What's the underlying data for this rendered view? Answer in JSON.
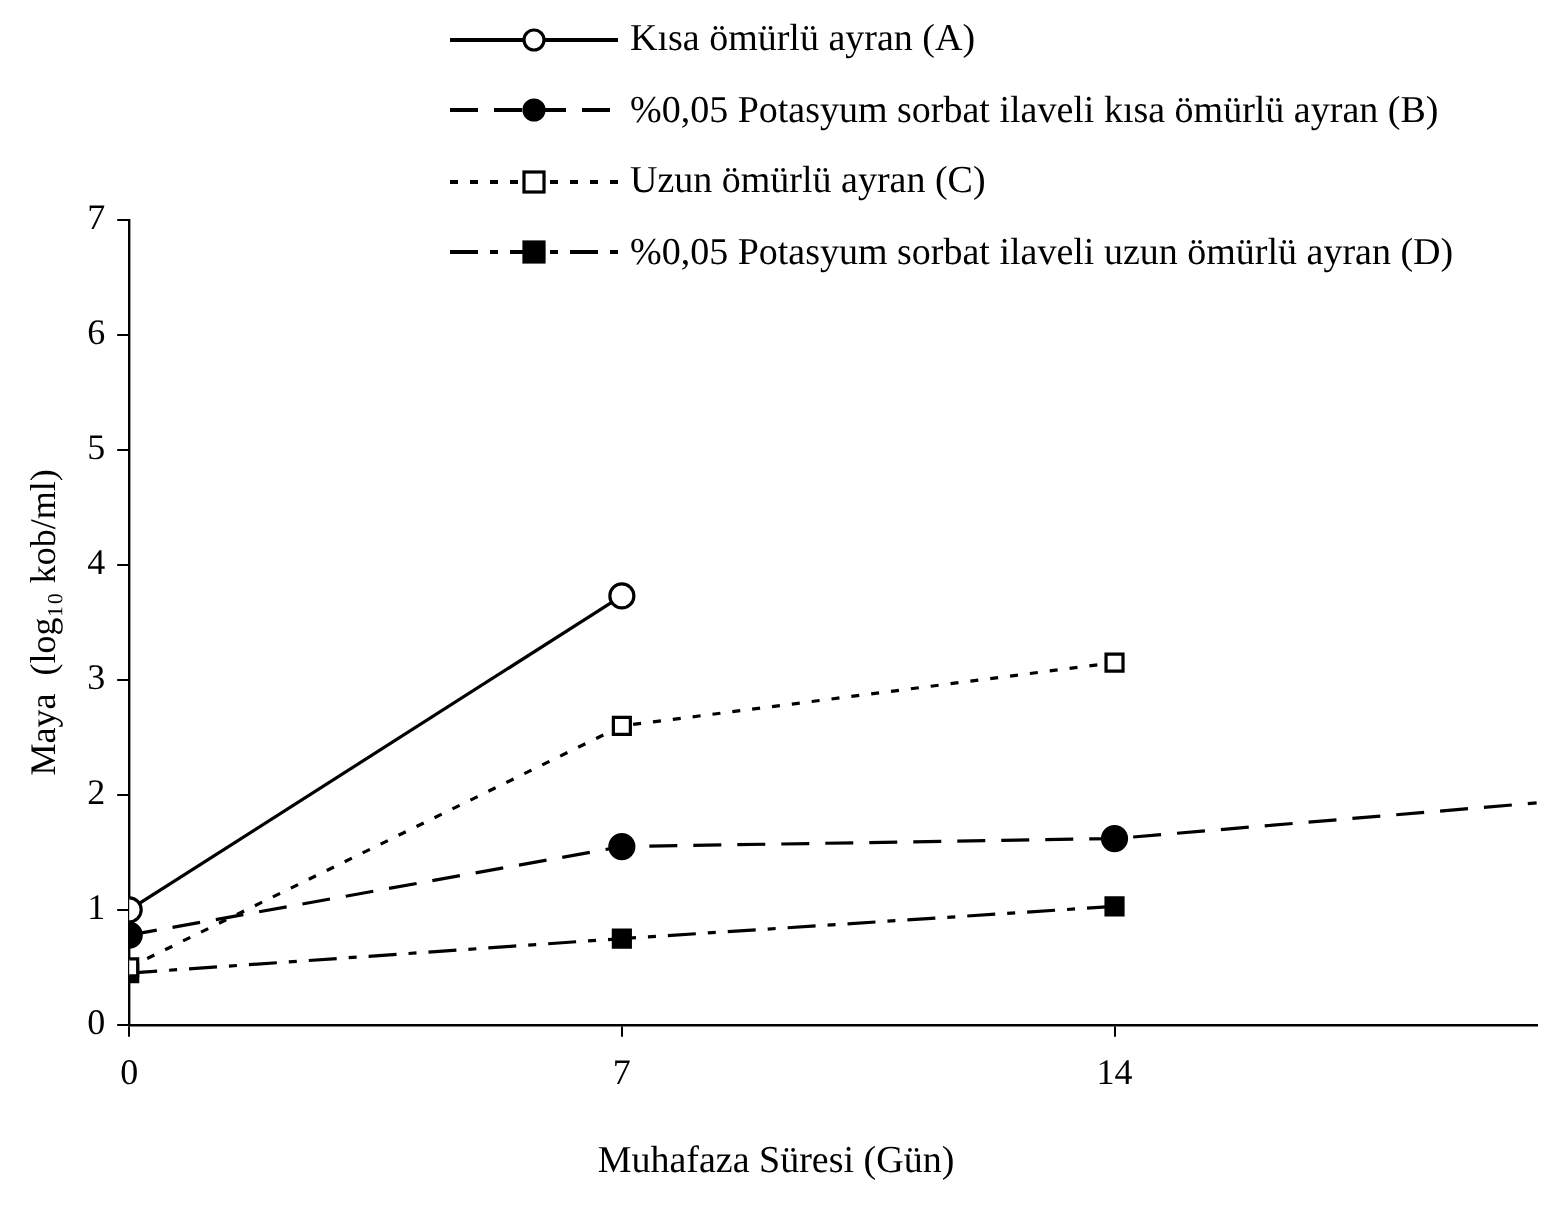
{
  "chart_data": {
    "type": "line",
    "xlabel": "Muhafaza Süresi (Gün)",
    "ylabel": "Maya  (log₁₀ kob/ml)",
    "xlim": [
      0,
      20
    ],
    "xticks": [
      0,
      7,
      14
    ],
    "ylim": [
      0,
      7
    ],
    "yticks": [
      0,
      1,
      2,
      3,
      4,
      5,
      6,
      7
    ],
    "grid": false,
    "legend": "top right",
    "series": [
      {
        "name": "Kısa ömürlü ayran (A)",
        "color": "#000000",
        "x": [
          0,
          7
        ],
        "values": [
          1.0,
          3.73
        ],
        "line_style": "solid",
        "marker": "circle",
        "colors": [
          "#ffffff",
          "#ffffff"
        ]
      },
      {
        "name": "%0,05 Potasyum sorbat ilaveli kısa ömürlü ayran (B)",
        "color": "#000000",
        "x": [
          0,
          7,
          14,
          20
        ],
        "values": [
          0.78,
          1.55,
          1.62,
          1.93
        ],
        "line_style": "dashed",
        "marker": "circle",
        "colors": [
          "#000000",
          "#000000",
          "#000000",
          "#000000"
        ]
      },
      {
        "name": "Uzun ömürlü ayran (C)",
        "color": "#000000",
        "x": [
          0,
          7,
          14
        ],
        "values": [
          0.5,
          2.6,
          3.15
        ],
        "line_style": "dotted",
        "marker": "square",
        "colors": [
          "#ffffff",
          "#ffffff",
          "#ffffff"
        ]
      },
      {
        "name": "%0,05 Potasyum sorbat ilaveli uzun ömürlü ayran (D)",
        "color": "#000000",
        "x": [
          0,
          7,
          14
        ],
        "values": [
          0.45,
          0.75,
          1.03
        ],
        "line_style": "dashdot",
        "marker": "square",
        "colors": [
          "#000000",
          "#000000",
          "#000000"
        ]
      }
    ]
  }
}
